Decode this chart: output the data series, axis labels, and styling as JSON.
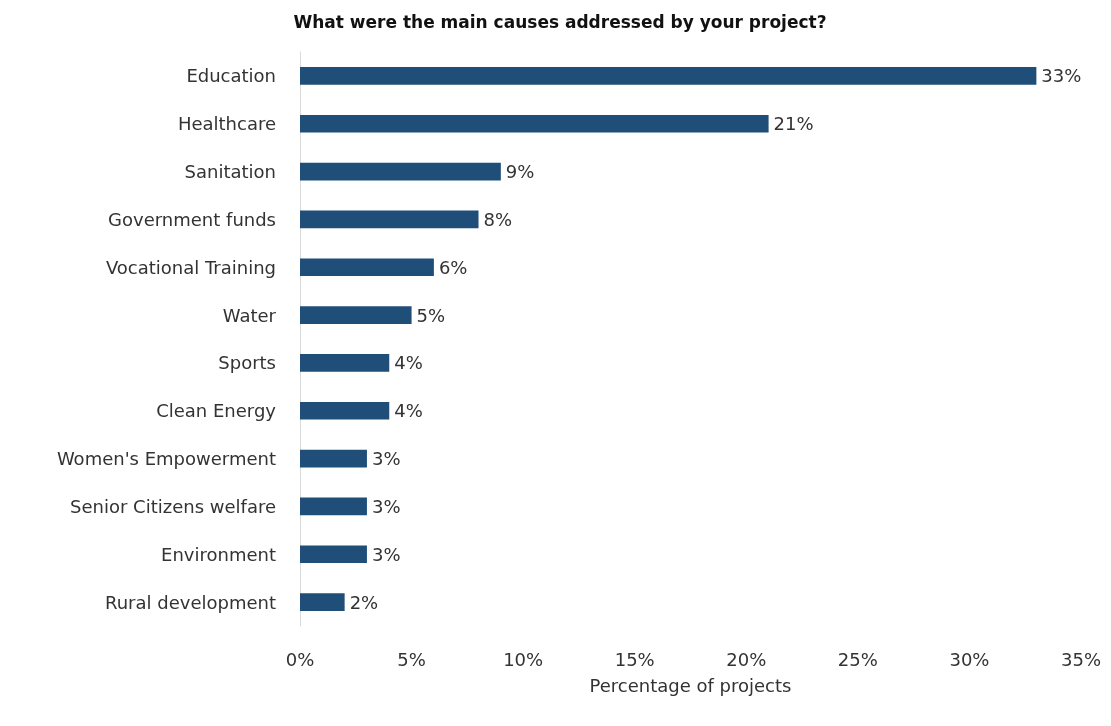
{
  "chart_data": {
    "type": "bar",
    "orientation": "horizontal",
    "title": "What were the main causes addressed by your project?",
    "xlabel": "Percentage of projects",
    "categories": [
      "Education",
      "Healthcare",
      "Sanitation",
      "Government funds",
      "Vocational Training",
      "Water",
      "Sports",
      "Clean Energy",
      "Women's Empowerment",
      "Senior Citizens welfare",
      "Environment",
      "Rural development"
    ],
    "values": [
      33,
      21,
      9,
      8,
      6,
      5,
      4,
      4,
      3,
      3,
      3,
      2
    ],
    "value_labels": [
      "33%",
      "21%",
      "9%",
      "8%",
      "6%",
      "5%",
      "4%",
      "4%",
      "3%",
      "3%",
      "3%",
      "2%"
    ],
    "color": "#1f4e79",
    "xlim": [
      0,
      35
    ],
    "xticks": [
      {
        "value": 0,
        "label": "0%"
      },
      {
        "value": 5,
        "label": "5%"
      },
      {
        "value": 10,
        "label": "10%"
      },
      {
        "value": 15,
        "label": "15%"
      },
      {
        "value": 20,
        "label": "20%"
      },
      {
        "value": 25,
        "label": "25%"
      },
      {
        "value": 30,
        "label": "30%"
      },
      {
        "value": 35,
        "label": "35%"
      }
    ],
    "grid": false
  }
}
